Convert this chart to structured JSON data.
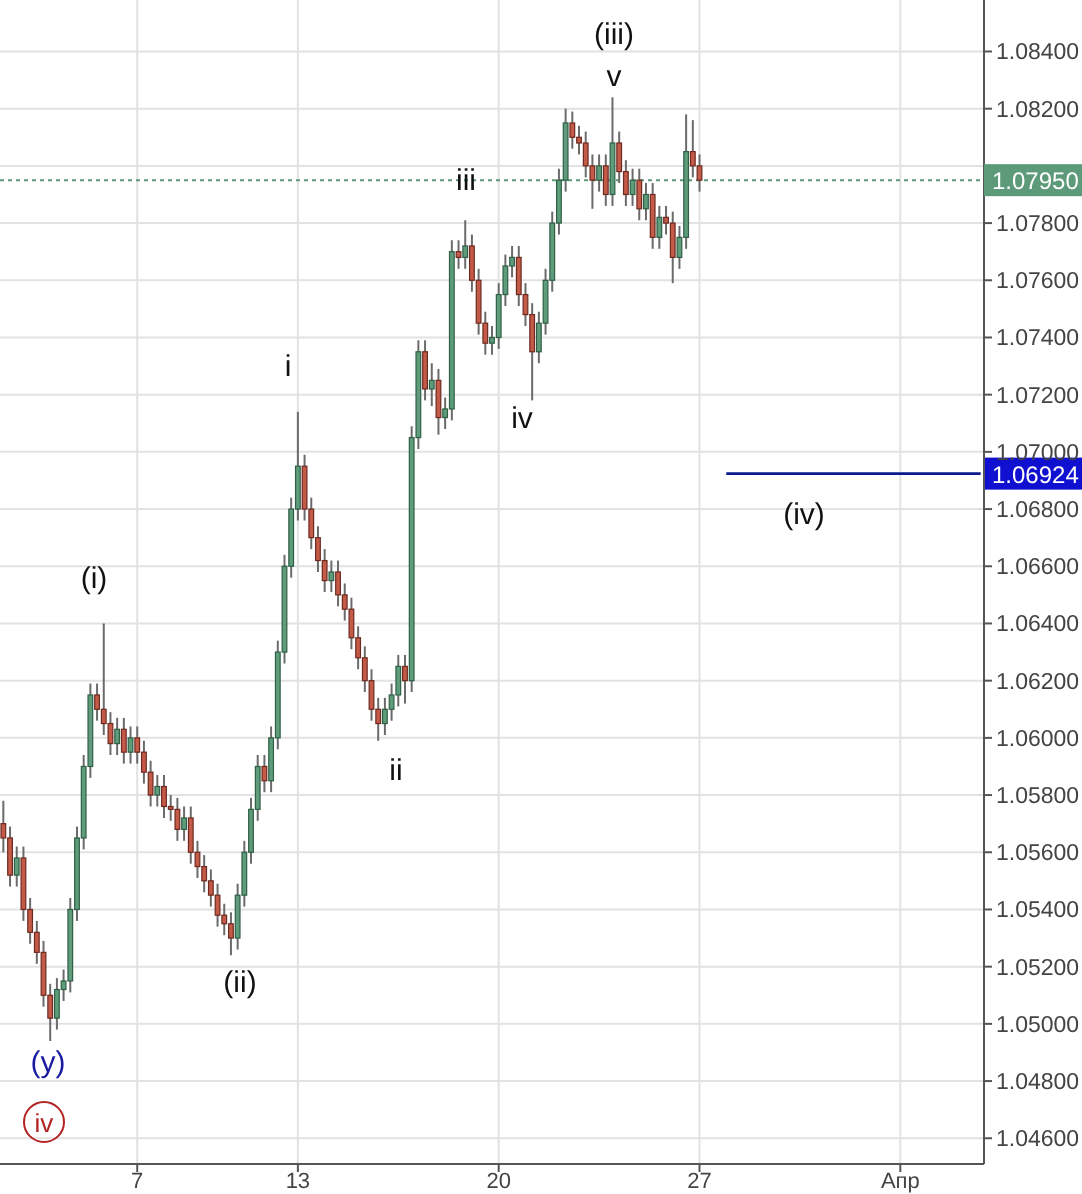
{
  "chart_data": {
    "type": "candlestick",
    "categories": [
      null,
      null,
      null,
      null,
      null,
      null,
      null,
      null,
      null,
      null,
      null,
      null,
      null,
      null,
      null,
      null,
      null,
      null,
      null,
      null,
      "7",
      null,
      null,
      null,
      null,
      null,
      null,
      null,
      null,
      null,
      null,
      null,
      null,
      null,
      null,
      null,
      null,
      null,
      null,
      null,
      null,
      null,
      null,
      null,
      "13",
      null,
      null,
      null,
      null,
      null,
      null,
      null,
      null,
      null,
      null,
      null,
      null,
      null,
      null,
      null,
      null,
      null,
      null,
      null,
      null,
      null,
      null,
      null,
      null,
      null,
      null,
      null,
      null,
      null,
      "20",
      null,
      null,
      null,
      null,
      null,
      null,
      null,
      null,
      null,
      null,
      null,
      null,
      null,
      null,
      null,
      null,
      null,
      null,
      null,
      null,
      null,
      null,
      null,
      null,
      null,
      null,
      null,
      null,
      null,
      "27",
      null,
      null,
      null,
      null,
      null,
      null,
      null,
      null,
      null,
      null,
      null,
      null,
      null,
      null,
      null,
      null,
      null,
      null,
      null,
      null,
      null,
      null,
      null,
      null,
      null,
      null,
      null,
      null,
      null,
      "Апр",
      null,
      null,
      null,
      null,
      null,
      null,
      null,
      null,
      null,
      null,
      null,
      null
    ],
    "ohlc": [
      [
        1.057,
        1.0578,
        1.056,
        1.0565
      ],
      [
        1.0565,
        1.0569,
        1.0548,
        1.0552
      ],
      [
        1.0552,
        1.0562,
        1.0548,
        1.0558
      ],
      [
        1.0558,
        1.0562,
        1.0536,
        1.054
      ],
      [
        1.054,
        1.0544,
        1.0528,
        1.0532
      ],
      [
        1.0532,
        1.0536,
        1.0521,
        1.0525
      ],
      [
        1.0525,
        1.0529,
        1.0506,
        1.051
      ],
      [
        1.051,
        1.0514,
        1.0494,
        1.0502
      ],
      [
        1.0502,
        1.0516,
        1.0498,
        1.0512
      ],
      [
        1.0512,
        1.0519,
        1.0508,
        1.0515
      ],
      [
        1.0515,
        1.0544,
        1.0511,
        1.054
      ],
      [
        1.054,
        1.0569,
        1.0536,
        1.0565
      ],
      [
        1.0565,
        1.0594,
        1.0561,
        1.059
      ],
      [
        1.059,
        1.0619,
        1.0586,
        1.0615
      ],
      [
        1.0615,
        1.0619,
        1.0606,
        1.061
      ],
      [
        1.061,
        1.064,
        1.0601,
        1.0605
      ],
      [
        1.0605,
        1.0609,
        1.0594,
        1.0598
      ],
      [
        1.0598,
        1.0607,
        1.0594,
        1.0603
      ],
      [
        1.0603,
        1.0607,
        1.0591,
        1.0595
      ],
      [
        1.0595,
        1.0604,
        1.0591,
        1.06
      ],
      [
        1.06,
        1.0604,
        1.0591,
        1.0595
      ],
      [
        1.0595,
        1.0599,
        1.0584,
        1.0588
      ],
      [
        1.0588,
        1.0592,
        1.0576,
        1.058
      ],
      [
        1.058,
        1.0587,
        1.0576,
        1.0583
      ],
      [
        1.0583,
        1.0587,
        1.0572,
        1.0576
      ],
      [
        1.0576,
        1.058,
        1.0571,
        1.0575
      ],
      [
        1.0575,
        1.0579,
        1.0564,
        1.0568
      ],
      [
        1.0568,
        1.0576,
        1.0564,
        1.0572
      ],
      [
        1.0572,
        1.0576,
        1.0556,
        1.056
      ],
      [
        1.056,
        1.0564,
        1.0551,
        1.0555
      ],
      [
        1.0555,
        1.0559,
        1.0546,
        1.055
      ],
      [
        1.055,
        1.0554,
        1.0541,
        1.0545
      ],
      [
        1.0545,
        1.0549,
        1.0534,
        1.0538
      ],
      [
        1.0538,
        1.0542,
        1.0531,
        1.0535
      ],
      [
        1.0535,
        1.0539,
        1.0524,
        1.053
      ],
      [
        1.053,
        1.0549,
        1.0526,
        1.0545
      ],
      [
        1.0545,
        1.0564,
        1.0541,
        1.056
      ],
      [
        1.056,
        1.0579,
        1.0556,
        1.0575
      ],
      [
        1.0575,
        1.0594,
        1.0571,
        1.059
      ],
      [
        1.059,
        1.0594,
        1.0581,
        1.0585
      ],
      [
        1.0585,
        1.0604,
        1.0581,
        1.06
      ],
      [
        1.06,
        1.0634,
        1.0596,
        1.063
      ],
      [
        1.063,
        1.0664,
        1.0626,
        1.066
      ],
      [
        1.066,
        1.0684,
        1.0656,
        1.068
      ],
      [
        1.068,
        1.0714,
        1.0676,
        1.0695
      ],
      [
        1.0695,
        1.0699,
        1.0676,
        1.068
      ],
      [
        1.068,
        1.0684,
        1.0666,
        1.067
      ],
      [
        1.067,
        1.0674,
        1.0658,
        1.0662
      ],
      [
        1.0662,
        1.0666,
        1.0651,
        1.0655
      ],
      [
        1.0655,
        1.0662,
        1.0651,
        1.0658
      ],
      [
        1.0658,
        1.0662,
        1.0646,
        1.065
      ],
      [
        1.065,
        1.0654,
        1.0641,
        1.0645
      ],
      [
        1.0645,
        1.0649,
        1.0631,
        1.0635
      ],
      [
        1.0635,
        1.0639,
        1.0624,
        1.0628
      ],
      [
        1.0628,
        1.0632,
        1.0616,
        1.062
      ],
      [
        1.062,
        1.0624,
        1.0606,
        1.061
      ],
      [
        1.061,
        1.0614,
        1.0599,
        1.0605
      ],
      [
        1.0605,
        1.0614,
        1.0601,
        1.061
      ],
      [
        1.061,
        1.0619,
        1.0606,
        1.0615
      ],
      [
        1.0615,
        1.0629,
        1.0611,
        1.0625
      ],
      [
        1.0625,
        1.0629,
        1.0612,
        1.062
      ],
      [
        1.062,
        1.0709,
        1.0616,
        1.0705
      ],
      [
        1.0705,
        1.0739,
        1.0701,
        1.0735
      ],
      [
        1.0735,
        1.0739,
        1.0718,
        1.0722
      ],
      [
        1.0722,
        1.0731,
        1.0716,
        1.0725
      ],
      [
        1.0725,
        1.0729,
        1.0706,
        1.0712
      ],
      [
        1.0712,
        1.0719,
        1.0708,
        1.0715
      ],
      [
        1.0715,
        1.0774,
        1.0711,
        1.077
      ],
      [
        1.077,
        1.0774,
        1.0764,
        1.0768
      ],
      [
        1.0768,
        1.0781,
        1.0764,
        1.0772
      ],
      [
        1.0772,
        1.0776,
        1.0756,
        1.076
      ],
      [
        1.076,
        1.0764,
        1.0741,
        1.0745
      ],
      [
        1.0745,
        1.0749,
        1.0734,
        1.0738
      ],
      [
        1.0738,
        1.0744,
        1.0734,
        1.074
      ],
      [
        1.074,
        1.0759,
        1.0736,
        1.0755
      ],
      [
        1.0755,
        1.0769,
        1.0751,
        1.0765
      ],
      [
        1.0765,
        1.0772,
        1.0761,
        1.0768
      ],
      [
        1.0768,
        1.0772,
        1.0751,
        1.0755
      ],
      [
        1.0755,
        1.0759,
        1.0744,
        1.0748
      ],
      [
        1.0748,
        1.0752,
        1.0718,
        1.0735
      ],
      [
        1.0735,
        1.0749,
        1.0731,
        1.0745
      ],
      [
        1.0745,
        1.0764,
        1.0741,
        1.076
      ],
      [
        1.076,
        1.0784,
        1.0756,
        1.078
      ],
      [
        1.078,
        1.0799,
        1.0776,
        1.0795
      ],
      [
        1.0795,
        1.082,
        1.0791,
        1.0815
      ],
      [
        1.0815,
        1.0819,
        1.0806,
        1.081
      ],
      [
        1.081,
        1.0814,
        1.0804,
        1.0808
      ],
      [
        1.0808,
        1.0812,
        1.0796,
        1.08
      ],
      [
        1.08,
        1.0804,
        1.0785,
        1.0795
      ],
      [
        1.0795,
        1.0804,
        1.0791,
        1.08
      ],
      [
        1.08,
        1.0804,
        1.0786,
        1.079
      ],
      [
        1.079,
        1.0824,
        1.0786,
        1.0808
      ],
      [
        1.0808,
        1.0812,
        1.0794,
        1.0798
      ],
      [
        1.0798,
        1.0802,
        1.0786,
        1.079
      ],
      [
        1.079,
        1.0799,
        1.0786,
        1.0795
      ],
      [
        1.0795,
        1.0799,
        1.0781,
        1.0785
      ],
      [
        1.0785,
        1.0794,
        1.0781,
        1.079
      ],
      [
        1.079,
        1.0794,
        1.0771,
        1.0775
      ],
      [
        1.0775,
        1.0786,
        1.0771,
        1.0782
      ],
      [
        1.0782,
        1.0786,
        1.0776,
        1.078
      ],
      [
        1.078,
        1.0784,
        1.0759,
        1.0768
      ],
      [
        1.0768,
        1.0779,
        1.0764,
        1.0775
      ],
      [
        1.0775,
        1.0818,
        1.0771,
        1.0805
      ],
      [
        1.0805,
        1.0816,
        1.0796,
        1.08
      ],
      [
        1.08,
        1.0804,
        1.0791,
        1.0795
      ],
      null,
      null,
      null,
      null,
      null,
      null,
      null,
      null,
      null,
      null,
      null,
      null,
      null,
      null,
      null,
      null,
      null,
      null,
      null,
      null,
      null,
      null,
      null,
      null,
      null,
      null,
      null,
      null,
      null,
      null,
      null,
      null,
      null,
      null,
      null,
      null,
      null,
      null,
      null,
      null,
      null,
      null
    ],
    "series": [
      {
        "type": "line",
        "values": [
          null,
          null,
          null,
          null,
          null,
          null,
          null,
          null,
          null,
          null,
          null,
          null,
          null,
          null,
          null,
          null,
          null,
          null,
          null,
          null,
          null,
          null,
          null,
          null,
          null,
          null,
          null,
          null,
          null,
          null,
          null,
          null,
          null,
          null,
          null,
          null,
          null,
          null,
          null,
          null,
          null,
          null,
          null,
          null,
          null,
          null,
          null,
          null,
          null,
          null,
          null,
          null,
          null,
          null,
          null,
          null,
          null,
          null,
          null,
          null,
          null,
          null,
          null,
          null,
          null,
          null,
          null,
          null,
          null,
          null,
          null,
          null,
          null,
          null,
          null,
          null,
          null,
          null,
          null,
          null,
          null,
          null,
          null,
          null,
          null,
          null,
          null,
          null,
          null,
          null,
          null,
          null,
          null,
          null,
          null,
          null,
          null,
          null,
          null,
          null,
          null,
          null,
          null,
          null,
          null,
          null,
          null,
          null,
          1.06924,
          1.06924,
          1.06924,
          1.06924,
          1.06924,
          1.06924,
          1.06924,
          1.06924,
          1.06924,
          1.06924,
          1.06924,
          1.06924,
          1.06924,
          1.06924,
          1.06924,
          1.06924,
          1.06924,
          1.06924,
          1.06924,
          1.06924,
          1.06924,
          1.06924,
          1.06924,
          1.06924,
          1.06924,
          1.06924,
          1.06924,
          1.06924,
          1.06924,
          1.06924,
          1.06924,
          1.06924,
          1.06924,
          1.06924,
          1.06924,
          1.06924,
          1.06924,
          1.06924,
          1.06924
        ],
        "color": "#0d1a8c"
      }
    ],
    "ylim": [
      1.0451,
      1.0858
    ],
    "yticks": [
      {
        "value": 1.046,
        "label": "1.04600"
      },
      {
        "value": 1.048,
        "label": "1.04800"
      },
      {
        "value": 1.05,
        "label": "1.05000"
      },
      {
        "value": 1.052,
        "label": "1.05200"
      },
      {
        "value": 1.054,
        "label": "1.05400"
      },
      {
        "value": 1.056,
        "label": "1.05600"
      },
      {
        "value": 1.058,
        "label": "1.05800"
      },
      {
        "value": 1.06,
        "label": "1.06000"
      },
      {
        "value": 1.062,
        "label": "1.06200"
      },
      {
        "value": 1.064,
        "label": "1.06400"
      },
      {
        "value": 1.066,
        "label": "1.06600"
      },
      {
        "value": 1.068,
        "label": "1.06800"
      },
      {
        "value": 1.07,
        "label": "1.07000"
      },
      {
        "value": 1.072,
        "label": "1.07200"
      },
      {
        "value": 1.074,
        "label": "1.07400"
      },
      {
        "value": 1.076,
        "label": "1.07600"
      },
      {
        "value": 1.078,
        "label": "1.07800"
      },
      {
        "value": 1.08,
        "label": null
      },
      {
        "value": 1.082,
        "label": "1.08200"
      },
      {
        "value": 1.084,
        "label": "1.08400"
      }
    ],
    "grid": true,
    "ref_lines": [
      {
        "axis": "y",
        "value": 1.0795,
        "label": "1.07950",
        "color": "#5c9a7a",
        "line_style": "dotted"
      }
    ],
    "annotations": [
      "(iii)",
      "v",
      "iii",
      "i",
      "iv",
      "(i)",
      "ii",
      "(ii)",
      "(y)",
      "iv",
      "(iv)",
      "1.06924"
    ]
  }
}
